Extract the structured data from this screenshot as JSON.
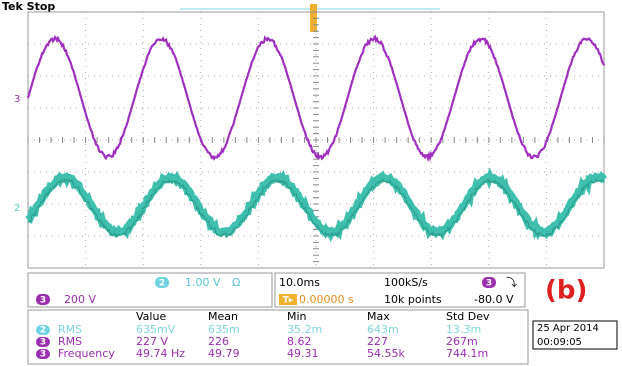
{
  "header": {
    "title": "Tek Stop"
  },
  "markers": {
    "upper": "3",
    "lower": "2"
  },
  "channels": [
    {
      "number": "2",
      "scale": "1.00 V",
      "coupling": "Ω"
    },
    {
      "number": "3",
      "scale": "200 V"
    }
  ],
  "timebase": {
    "scale": "10.0ms",
    "sample_rate": "100kS/s",
    "trigger_channel": "3",
    "trigger_slope": "⤵",
    "trigger_badge": "T▸",
    "trigger_position": "0.00000 s",
    "record_length": "10k points",
    "trigger_level": "-80.0 V"
  },
  "label": "(b)",
  "measurements": {
    "columns": [
      "Value",
      "Mean",
      "Min",
      "Max",
      "Std Dev"
    ],
    "rows": [
      {
        "channel": "2",
        "name": "RMS",
        "cells": [
          "635mV",
          "635m",
          "35.2m",
          "643m",
          "13.3m"
        ]
      },
      {
        "channel": "3",
        "name": "RMS",
        "cells": [
          "227 V",
          "226",
          "8.62",
          "227",
          "267m"
        ]
      },
      {
        "channel": "3",
        "name": "Frequency",
        "cells": [
          "49.74 Hz",
          "49.79",
          "49.31",
          "54.55k",
          "744.1m"
        ]
      }
    ]
  },
  "date": {
    "day": "25 Apr 2014",
    "time": "00:09:05"
  }
}
